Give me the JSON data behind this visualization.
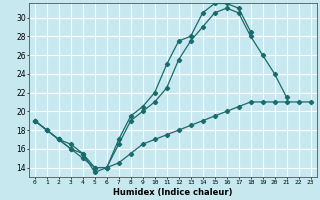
{
  "xlabel": "Humidex (Indice chaleur)",
  "bg_color": "#c8e8f0",
  "line_color": "#1a6b6b",
  "grid_color": "#ffffff",
  "xlim": [
    -0.5,
    23.5
  ],
  "ylim": [
    13.0,
    31.5
  ],
  "xticks": [
    0,
    1,
    2,
    3,
    4,
    5,
    6,
    7,
    8,
    9,
    10,
    11,
    12,
    13,
    14,
    15,
    16,
    17,
    18,
    19,
    20,
    21,
    22,
    23
  ],
  "yticks": [
    14,
    16,
    18,
    20,
    22,
    24,
    26,
    28,
    30
  ],
  "line1": {
    "x": [
      0,
      1,
      2,
      3,
      4,
      5,
      6,
      7,
      8,
      9,
      10,
      11,
      12,
      13,
      14,
      15,
      16,
      17,
      18
    ],
    "y": [
      19,
      18,
      17,
      16,
      15.5,
      13.5,
      14,
      17,
      19.5,
      20.5,
      22,
      25,
      27.5,
      28,
      30.5,
      31.5,
      31.5,
      31,
      28.5
    ]
  },
  "line2": {
    "x": [
      0,
      1,
      2,
      3,
      4,
      5,
      6,
      7,
      8,
      9,
      10,
      11,
      12,
      13,
      14,
      15,
      16,
      17,
      18,
      19,
      20,
      21
    ],
    "y": [
      19,
      18,
      17,
      16,
      15,
      14,
      14,
      16.5,
      19,
      20,
      21,
      22.5,
      25.5,
      27.5,
      29,
      30.5,
      31,
      30.5,
      28,
      26,
      24,
      21.5
    ]
  },
  "line3": {
    "x": [
      0,
      1,
      2,
      3,
      4,
      5,
      6,
      7,
      8,
      9,
      10,
      11,
      12,
      13,
      14,
      15,
      16,
      17,
      18,
      19,
      20,
      21,
      22,
      23
    ],
    "y": [
      19,
      18,
      17,
      16.5,
      15.5,
      14,
      14,
      14.5,
      15.5,
      16.5,
      17,
      17.5,
      18,
      18.5,
      19,
      19.5,
      20,
      20.5,
      21,
      21,
      21,
      21,
      21,
      21
    ]
  }
}
